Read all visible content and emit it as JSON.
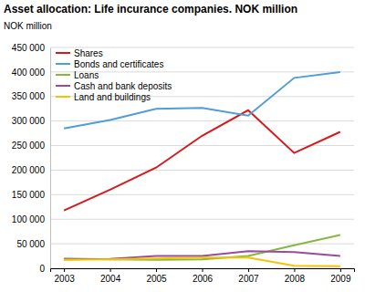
{
  "chart_data": {
    "type": "line",
    "title": "Asset allocation: Life incurance companies. NOK million",
    "y_label": "NOK million",
    "categories": [
      "2003",
      "2004",
      "2005",
      "2006",
      "2007",
      "2008",
      "2009"
    ],
    "series": [
      {
        "name": "Shares",
        "color": "#d7191c",
        "values": [
          118000,
          160000,
          205000,
          270000,
          322000,
          235000,
          278000
        ]
      },
      {
        "name": "Bonds and certificates",
        "color": "#4f9fd6",
        "values": [
          285000,
          302000,
          325000,
          327000,
          311000,
          388000,
          400000
        ]
      },
      {
        "name": "Loans",
        "color": "#86b840",
        "values": [
          20000,
          18000,
          17000,
          18000,
          25000,
          47000,
          68000
        ]
      },
      {
        "name": "Cash and bank deposits",
        "color": "#9b4b9f",
        "values": [
          18000,
          19000,
          25000,
          25000,
          35000,
          33000,
          25000
        ]
      },
      {
        "name": "Land and buildings",
        "color": "#f5c400",
        "values": [
          17000,
          18000,
          20000,
          22000,
          22000,
          5000,
          4000
        ]
      }
    ],
    "ylim": [
      0,
      450000
    ],
    "yticks": [
      0,
      {
        "value": 50000,
        "label": "50 000"
      },
      {
        "value": 100000,
        "label": "100 000"
      },
      {
        "value": 150000,
        "label": "150 000"
      },
      {
        "value": 200000,
        "label": "200 000"
      },
      {
        "value": 250000,
        "label": "250 000"
      },
      {
        "value": 300000,
        "label": "300 000"
      },
      {
        "value": 350000,
        "label": "350 000"
      },
      {
        "value": 400000,
        "label": "400 000"
      },
      {
        "value": 450000,
        "label": "450 000"
      }
    ],
    "grid": true,
    "legend": "upper left"
  }
}
